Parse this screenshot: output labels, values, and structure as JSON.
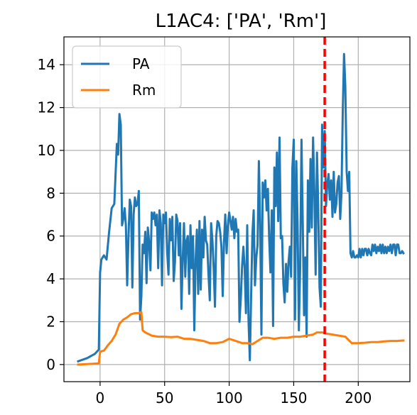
{
  "chart_data": {
    "type": "line",
    "title": "L1AC4: ['PA', 'Rm']",
    "xlabel": "",
    "ylabel": "",
    "xlim": [
      -28,
      240
    ],
    "ylim": [
      -0.8,
      15.3
    ],
    "xticks": [
      0,
      50,
      100,
      150,
      200
    ],
    "yticks": [
      0,
      2,
      4,
      6,
      8,
      10,
      12,
      14
    ],
    "grid": true,
    "legend": {
      "placement": "top-left"
    },
    "vline": {
      "x": 174,
      "color": "#ff0000",
      "style": "dashed"
    },
    "series": [
      {
        "name": "PA",
        "color": "#1f77b4",
        "points": [
          [
            -17,
            0.15
          ],
          [
            -10,
            0.3
          ],
          [
            -4,
            0.5
          ],
          [
            -1,
            0.7
          ],
          [
            0,
            4.3
          ],
          [
            1,
            4.9
          ],
          [
            3,
            5.1
          ],
          [
            5,
            4.9
          ],
          [
            7,
            6.2
          ],
          [
            9,
            7.3
          ],
          [
            11,
            7.5
          ],
          [
            13,
            10.3
          ],
          [
            14,
            9.8
          ],
          [
            15,
            11.7
          ],
          [
            16,
            11.2
          ],
          [
            17,
            6.5
          ],
          [
            18,
            6.8
          ],
          [
            19,
            7.3
          ],
          [
            20,
            6.5
          ],
          [
            21,
            3.7
          ],
          [
            22,
            6.0
          ],
          [
            23,
            7.7
          ],
          [
            24,
            7.4
          ],
          [
            25,
            3.6
          ],
          [
            26,
            7.0
          ],
          [
            27,
            7.8
          ],
          [
            28,
            7.4
          ],
          [
            29,
            7.5
          ],
          [
            30,
            8.1
          ],
          [
            31,
            2.1
          ],
          [
            32,
            3.2
          ],
          [
            33,
            5.6
          ],
          [
            34,
            5.2
          ],
          [
            35,
            6.2
          ],
          [
            36,
            3.8
          ],
          [
            37,
            6.4
          ],
          [
            38,
            5.7
          ],
          [
            39,
            4.4
          ],
          [
            40,
            7.1
          ],
          [
            41,
            6.8
          ],
          [
            42,
            7.1
          ],
          [
            43,
            6.5
          ],
          [
            44,
            7.0
          ],
          [
            45,
            4.5
          ],
          [
            46,
            7.2
          ],
          [
            47,
            6.6
          ],
          [
            48,
            3.7
          ],
          [
            49,
            7.0
          ],
          [
            50,
            6.6
          ],
          [
            51,
            7.1
          ],
          [
            52,
            5.2
          ],
          [
            53,
            4.2
          ],
          [
            54,
            6.8
          ],
          [
            55,
            5.8
          ],
          [
            56,
            6.9
          ],
          [
            57,
            3.9
          ],
          [
            58,
            4.8
          ],
          [
            59,
            7.0
          ],
          [
            60,
            6.7
          ],
          [
            61,
            5.1
          ],
          [
            62,
            6.6
          ],
          [
            63,
            2.6
          ],
          [
            64,
            4.9
          ],
          [
            65,
            6.6
          ],
          [
            66,
            4.1
          ],
          [
            67,
            5.8
          ],
          [
            68,
            6.0
          ],
          [
            69,
            3.3
          ],
          [
            70,
            6.5
          ],
          [
            71,
            4.5
          ],
          [
            72,
            6.0
          ],
          [
            73,
            1.6
          ],
          [
            74,
            4.9
          ],
          [
            75,
            6.3
          ],
          [
            76,
            3.3
          ],
          [
            77,
            6.7
          ],
          [
            78,
            3.5
          ],
          [
            79,
            6.3
          ],
          [
            80,
            5.0
          ],
          [
            81,
            6.9
          ],
          [
            82,
            5.8
          ],
          [
            83,
            5.6
          ],
          [
            84,
            4.2
          ],
          [
            85,
            3.0
          ],
          [
            86,
            6.6
          ],
          [
            87,
            5.8
          ],
          [
            88,
            4.5
          ],
          [
            89,
            2.7
          ],
          [
            90,
            6.0
          ],
          [
            91,
            6.7
          ],
          [
            92,
            6.6
          ],
          [
            93,
            6.2
          ],
          [
            94,
            5.5
          ],
          [
            95,
            3.2
          ],
          [
            96,
            5.7
          ],
          [
            97,
            7.0
          ],
          [
            98,
            5.2
          ],
          [
            99,
            6.5
          ],
          [
            100,
            7.1
          ],
          [
            101,
            6.7
          ],
          [
            102,
            6.3
          ],
          [
            103,
            6.9
          ],
          [
            104,
            5.9
          ],
          [
            105,
            6.8
          ],
          [
            106,
            6.2
          ],
          [
            107,
            6.3
          ],
          [
            108,
            2.0
          ],
          [
            109,
            3.1
          ],
          [
            110,
            4.6
          ],
          [
            111,
            5.5
          ],
          [
            112,
            4.5
          ],
          [
            113,
            2.4
          ],
          [
            114,
            6.5
          ],
          [
            115,
            2.0
          ],
          [
            116,
            0.2
          ],
          [
            117,
            3.2
          ],
          [
            118,
            6.1
          ],
          [
            119,
            7.2
          ],
          [
            120,
            3.7
          ],
          [
            121,
            5.0
          ],
          [
            122,
            5.6
          ],
          [
            123,
            9.5
          ],
          [
            124,
            6.6
          ],
          [
            125,
            1.4
          ],
          [
            126,
            8.5
          ],
          [
            127,
            7.8
          ],
          [
            128,
            8.6
          ],
          [
            129,
            7.2
          ],
          [
            130,
            8.2
          ],
          [
            131,
            5.9
          ],
          [
            132,
            4.3
          ],
          [
            133,
            7.2
          ],
          [
            134,
            1.8
          ],
          [
            135,
            9.2
          ],
          [
            136,
            7.4
          ],
          [
            137,
            9.9
          ],
          [
            138,
            6.7
          ],
          [
            139,
            10.6
          ],
          [
            140,
            5.9
          ],
          [
            141,
            6.0
          ],
          [
            142,
            3.8
          ],
          [
            143,
            2.9
          ],
          [
            144,
            4.7
          ],
          [
            145,
            3.4
          ],
          [
            146,
            4.8
          ],
          [
            147,
            5.5
          ],
          [
            148,
            4.1
          ],
          [
            149,
            9.2
          ],
          [
            150,
            10.5
          ],
          [
            151,
            2.1
          ],
          [
            152,
            9.5
          ],
          [
            153,
            6.6
          ],
          [
            154,
            1.6
          ],
          [
            155,
            4.5
          ],
          [
            156,
            10.5
          ],
          [
            157,
            6.6
          ],
          [
            158,
            2.3
          ],
          [
            159,
            5.0
          ],
          [
            160,
            1.3
          ],
          [
            161,
            8.6
          ],
          [
            162,
            6.2
          ],
          [
            163,
            9.6
          ],
          [
            164,
            6.4
          ],
          [
            165,
            10.6
          ],
          [
            166,
            8.1
          ],
          [
            167,
            4.2
          ],
          [
            168,
            9.9
          ],
          [
            169,
            7.3
          ],
          [
            170,
            3.6
          ],
          [
            171,
            2.7
          ],
          [
            172,
            11.2
          ],
          [
            173,
            9.2
          ],
          [
            174,
            10.9
          ],
          [
            175,
            7.4
          ],
          [
            176,
            8.4
          ],
          [
            177,
            8.9
          ],
          [
            178,
            7.7
          ],
          [
            179,
            8.6
          ],
          [
            180,
            6.9
          ],
          [
            181,
            9.0
          ],
          [
            182,
            7.1
          ],
          [
            183,
            7.5
          ],
          [
            184,
            8.5
          ],
          [
            185,
            8.8
          ],
          [
            186,
            6.8
          ],
          [
            187,
            8.0
          ],
          [
            188,
            11.8
          ],
          [
            189,
            14.5
          ],
          [
            190,
            13.0
          ],
          [
            191,
            9.0
          ],
          [
            192,
            8.1
          ],
          [
            193,
            9.0
          ],
          [
            194,
            5.2
          ],
          [
            195,
            5.0
          ],
          [
            196,
            5.3
          ],
          [
            197,
            5.0
          ],
          [
            198,
            5.0
          ],
          [
            199,
            5.1
          ],
          [
            200,
            5.0
          ],
          [
            201,
            5.4
          ],
          [
            202,
            5.0
          ],
          [
            203,
            5.4
          ],
          [
            204,
            5.1
          ],
          [
            205,
            5.4
          ],
          [
            206,
            5.4
          ],
          [
            207,
            5.1
          ],
          [
            208,
            5.4
          ],
          [
            209,
            5.2
          ],
          [
            210,
            5.1
          ],
          [
            211,
            5.6
          ],
          [
            212,
            5.3
          ],
          [
            213,
            5.6
          ],
          [
            214,
            5.2
          ],
          [
            215,
            5.5
          ],
          [
            216,
            5.3
          ],
          [
            217,
            5.6
          ],
          [
            218,
            5.2
          ],
          [
            219,
            5.6
          ],
          [
            220,
            5.2
          ],
          [
            221,
            5.5
          ],
          [
            222,
            5.2
          ],
          [
            223,
            5.5
          ],
          [
            224,
            5.3
          ],
          [
            225,
            5.6
          ],
          [
            226,
            5.2
          ],
          [
            227,
            5.6
          ],
          [
            228,
            5.6
          ],
          [
            229,
            5.1
          ],
          [
            230,
            5.6
          ],
          [
            231,
            5.6
          ],
          [
            232,
            5.2
          ],
          [
            233,
            5.2
          ],
          [
            234,
            5.3
          ],
          [
            235,
            5.2
          ]
        ]
      },
      {
        "name": "Rm",
        "color": "#ff7f0e",
        "points": [
          [
            -17,
            0.0
          ],
          [
            -10,
            0.02
          ],
          [
            -4,
            0.04
          ],
          [
            -1,
            0.05
          ],
          [
            0,
            0.6
          ],
          [
            3,
            0.65
          ],
          [
            6,
            0.9
          ],
          [
            9,
            1.1
          ],
          [
            12,
            1.4
          ],
          [
            15,
            1.9
          ],
          [
            18,
            2.1
          ],
          [
            21,
            2.2
          ],
          [
            24,
            2.35
          ],
          [
            27,
            2.4
          ],
          [
            30,
            2.4
          ],
          [
            32,
            2.45
          ],
          [
            33,
            1.6
          ],
          [
            35,
            1.5
          ],
          [
            40,
            1.35
          ],
          [
            45,
            1.3
          ],
          [
            50,
            1.3
          ],
          [
            55,
            1.28
          ],
          [
            60,
            1.3
          ],
          [
            65,
            1.2
          ],
          [
            70,
            1.2
          ],
          [
            75,
            1.15
          ],
          [
            80,
            1.1
          ],
          [
            85,
            1.0
          ],
          [
            90,
            1.0
          ],
          [
            95,
            1.05
          ],
          [
            100,
            1.2
          ],
          [
            105,
            1.1
          ],
          [
            110,
            1.0
          ],
          [
            115,
            1.0
          ],
          [
            118,
            0.95
          ],
          [
            122,
            1.1
          ],
          [
            126,
            1.25
          ],
          [
            130,
            1.25
          ],
          [
            135,
            1.2
          ],
          [
            140,
            1.25
          ],
          [
            145,
            1.25
          ],
          [
            150,
            1.3
          ],
          [
            155,
            1.3
          ],
          [
            160,
            1.35
          ],
          [
            165,
            1.4
          ],
          [
            168,
            1.5
          ],
          [
            172,
            1.5
          ],
          [
            175,
            1.45
          ],
          [
            180,
            1.4
          ],
          [
            185,
            1.35
          ],
          [
            190,
            1.3
          ],
          [
            195,
            1.0
          ],
          [
            200,
            1.0
          ],
          [
            205,
            1.02
          ],
          [
            210,
            1.05
          ],
          [
            215,
            1.05
          ],
          [
            220,
            1.08
          ],
          [
            225,
            1.1
          ],
          [
            230,
            1.1
          ],
          [
            235,
            1.12
          ]
        ]
      }
    ]
  }
}
